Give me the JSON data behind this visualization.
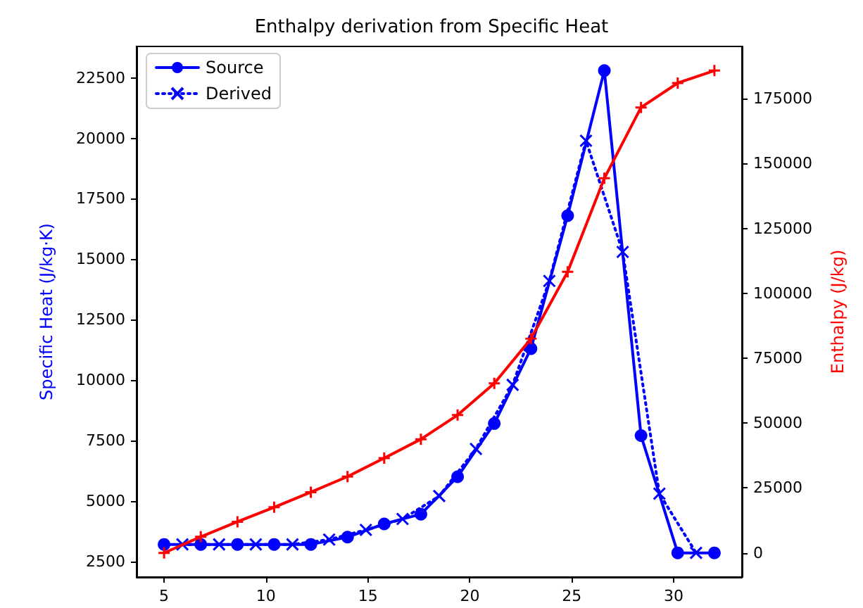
{
  "chart_data": {
    "type": "line",
    "title": "Enthalpy derivation from Specific Heat",
    "ylabel": "Specific Heat (J/kg·K)",
    "y2label": "Enthalpy (J/kg)",
    "xlim": [
      3.65,
      33.35
    ],
    "xticks": [
      5,
      10,
      15,
      20,
      25,
      30
    ],
    "ylim": [
      1850,
      23800
    ],
    "yticks": [
      2500,
      5000,
      7500,
      10000,
      12500,
      15000,
      17500,
      20000,
      22500
    ],
    "y2lim": [
      -9290,
      195090
    ],
    "y2ticks": [
      0,
      25000,
      50000,
      75000,
      100000,
      125000,
      150000,
      175000
    ],
    "grid": false,
    "legend": "top left",
    "series": [
      {
        "name": "Source",
        "color": "#0000ff",
        "marker": "circle",
        "line_style": "solid",
        "x": [
          5,
          6.8,
          8.6,
          10.4,
          12.2,
          14,
          15.8,
          17.6,
          19.4,
          21.2,
          23,
          24.8,
          26.6,
          28.4,
          30.2,
          32
        ],
        "values": [
          3200,
          3200,
          3200,
          3200,
          3200,
          3500,
          4050,
          4450,
          6000,
          8200,
          11300,
          16800,
          22800,
          7700,
          2850,
          2850
        ]
      },
      {
        "name": "Derived",
        "color": "#0000ff",
        "marker": "cross",
        "line_style": "dotted",
        "x": [
          5.9,
          7.7,
          9.5,
          11.3,
          13.1,
          14.9,
          16.7,
          18.5,
          20.3,
          22.1,
          23.9,
          25.7,
          27.5,
          29.3,
          31.1
        ],
        "values": [
          3200,
          3200,
          3200,
          3200,
          3400,
          3800,
          4250,
          5200,
          7150,
          9800,
          14100,
          19900,
          15300,
          5300,
          2850
        ]
      },
      {
        "color": "#ff0000",
        "marker": "plus",
        "line_style": "solid",
        "axis": "y2",
        "x": [
          5,
          6.8,
          8.6,
          10.4,
          12.2,
          14,
          15.8,
          17.6,
          19.4,
          21.2,
          23,
          24.8,
          26.6,
          28.4,
          30.2,
          32
        ],
        "values": [
          0,
          6200,
          12000,
          17600,
          23400,
          29400,
          36500,
          43800,
          53100,
          65300,
          82500,
          108300,
          144300,
          171600,
          181000,
          185800
        ]
      }
    ]
  }
}
